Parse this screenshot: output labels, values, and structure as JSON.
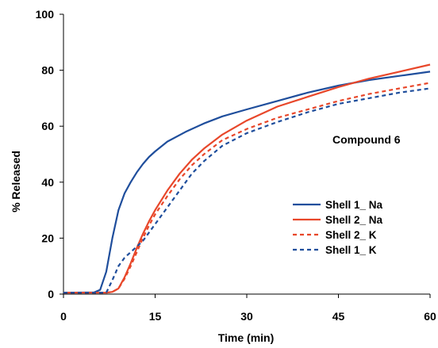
{
  "chart_data": {
    "type": "line",
    "title": "",
    "annotation": "Compound 6",
    "xlabel": "Time (min)",
    "ylabel": "% Released",
    "xlim": [
      0,
      60
    ],
    "ylim": [
      0,
      100
    ],
    "x_ticks": [
      "0",
      "15",
      "30",
      "45",
      "60"
    ],
    "y_ticks": [
      "0",
      "20",
      "40",
      "60",
      "80",
      "100"
    ],
    "grid": false,
    "legend_position": "right",
    "series": [
      {
        "name": "Shell 1_ Na",
        "color": "#1f4e9c",
        "dashed": false,
        "points": [
          [
            0,
            0.5
          ],
          [
            5,
            0.6
          ],
          [
            6,
            1.5
          ],
          [
            7,
            8
          ],
          [
            8,
            20
          ],
          [
            9,
            30
          ],
          [
            10,
            36
          ],
          [
            11,
            40
          ],
          [
            12,
            43.5
          ],
          [
            13,
            46.5
          ],
          [
            14,
            49
          ],
          [
            15,
            51
          ],
          [
            17,
            54.5
          ],
          [
            20,
            58
          ],
          [
            23,
            61
          ],
          [
            26,
            63.5
          ],
          [
            30,
            66
          ],
          [
            35,
            69
          ],
          [
            40,
            72
          ],
          [
            45,
            74.5
          ],
          [
            50,
            76.5
          ],
          [
            55,
            78
          ],
          [
            60,
            79.5
          ]
        ]
      },
      {
        "name": "Shell 2_ Na",
        "color": "#e8472a",
        "dashed": false,
        "points": [
          [
            0,
            0.5
          ],
          [
            7,
            0.5
          ],
          [
            8,
            0.8
          ],
          [
            9,
            2
          ],
          [
            10,
            6
          ],
          [
            11,
            11
          ],
          [
            12,
            16.5
          ],
          [
            13,
            21.5
          ],
          [
            14,
            26
          ],
          [
            15,
            30
          ],
          [
            17,
            37
          ],
          [
            19,
            43
          ],
          [
            21,
            48
          ],
          [
            23,
            52
          ],
          [
            26,
            57
          ],
          [
            30,
            62
          ],
          [
            35,
            67
          ],
          [
            40,
            70.5
          ],
          [
            45,
            74
          ],
          [
            50,
            77
          ],
          [
            55,
            79.5
          ],
          [
            60,
            82
          ]
        ]
      },
      {
        "name": "Shell 2_ K",
        "color": "#e8472a",
        "dashed": true,
        "points": [
          [
            0,
            0.5
          ],
          [
            7,
            0.5
          ],
          [
            8,
            0.8
          ],
          [
            9,
            2
          ],
          [
            10,
            5.5
          ],
          [
            11,
            10
          ],
          [
            12,
            15
          ],
          [
            13,
            20
          ],
          [
            14,
            24.5
          ],
          [
            15,
            28.5
          ],
          [
            17,
            35
          ],
          [
            19,
            41
          ],
          [
            21,
            46
          ],
          [
            23,
            50
          ],
          [
            26,
            55
          ],
          [
            30,
            59
          ],
          [
            35,
            63
          ],
          [
            40,
            66
          ],
          [
            45,
            69
          ],
          [
            50,
            71.5
          ],
          [
            55,
            73.5
          ],
          [
            60,
            75.5
          ]
        ]
      },
      {
        "name": "Shell 1_ K",
        "color": "#1f4e9c",
        "dashed": true,
        "points": [
          [
            0,
            0.5
          ],
          [
            7,
            0.5
          ],
          [
            8,
            5
          ],
          [
            9,
            10
          ],
          [
            10,
            13
          ],
          [
            11,
            15
          ],
          [
            12,
            17
          ],
          [
            13,
            19
          ],
          [
            14,
            22
          ],
          [
            15,
            25
          ],
          [
            17,
            31
          ],
          [
            19,
            37
          ],
          [
            21,
            43
          ],
          [
            23,
            47.5
          ],
          [
            26,
            53
          ],
          [
            30,
            57.5
          ],
          [
            35,
            61.5
          ],
          [
            40,
            65
          ],
          [
            45,
            68
          ],
          [
            50,
            70
          ],
          [
            55,
            72
          ],
          [
            60,
            73.5
          ]
        ]
      }
    ]
  }
}
